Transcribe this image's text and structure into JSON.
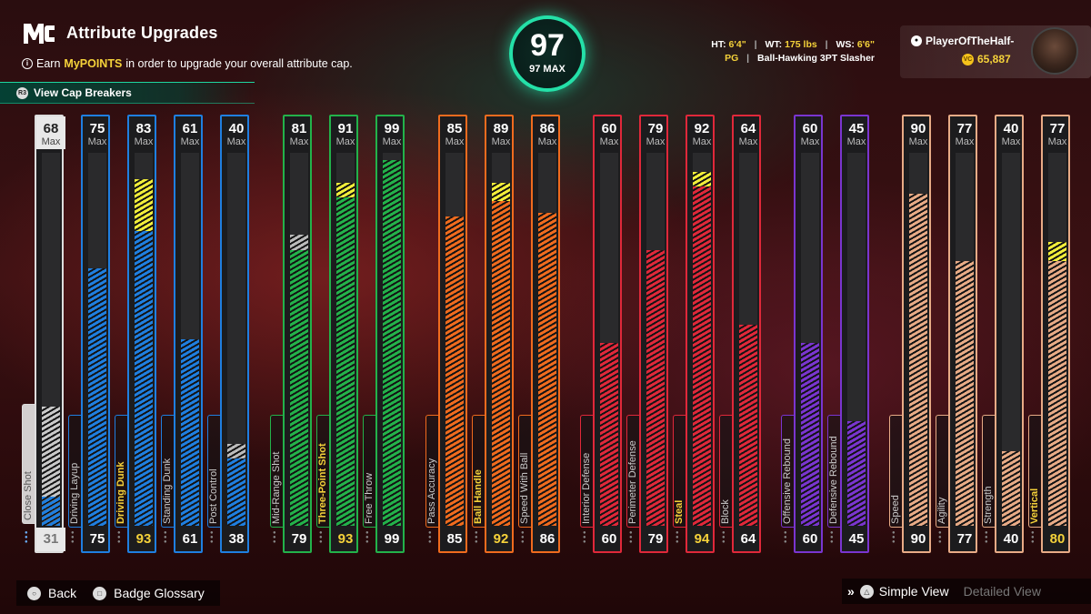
{
  "header": {
    "title": "Attribute Upgrades",
    "subtitle_prefix": "Earn ",
    "subtitle_highlight": "MyPOINTS",
    "subtitle_suffix": " in order to upgrade your overall attribute cap.",
    "cap_breakers_label": "View Cap Breakers",
    "cap_breakers_icon_text": "R3"
  },
  "overall": {
    "value": "97",
    "max_label": "97 MAX"
  },
  "bio": {
    "ht_label": "HT:",
    "ht_value": "6'4\"",
    "wt_label": "WT:",
    "wt_value": "175 lbs",
    "ws_label": "WS:",
    "ws_value": "6'6\"",
    "position": "PG",
    "archetype": "Ball-Hawking 3PT Slasher"
  },
  "player": {
    "name": "PlayerOfTheHalf-",
    "vc": "65,887",
    "vc_icon_text": "VC"
  },
  "max_word": "Max",
  "colors": {
    "gray": "#c9c9c9",
    "blue": "#1f7fe0",
    "green": "#23b24a",
    "orange": "#f06b1e",
    "red": "#e0283a",
    "purple": "#7a35d0",
    "tan": "#e8ab86",
    "boost": "#f2ee3a",
    "accent": "#24e0a8"
  },
  "attributes": [
    {
      "name": "Close Shot",
      "cap": "68",
      "current": "31",
      "fill": 0.32,
      "boost": 0.0,
      "group": "gray",
      "highlight": false,
      "selected": true
    },
    {
      "name": "Driving Layup",
      "cap": "75",
      "current": "75",
      "fill": 0.69,
      "boost": 0.0,
      "group": "blue",
      "highlight": false
    },
    {
      "name": "Driving Dunk",
      "cap": "83",
      "current": "93",
      "fill": 0.79,
      "boost": 0.14,
      "group": "blue",
      "highlight": true
    },
    {
      "name": "Standing Dunk",
      "cap": "61",
      "current": "61",
      "fill": 0.5,
      "boost": 0.0,
      "group": "blue",
      "highlight": false
    },
    {
      "name": "Post Control",
      "cap": "40",
      "current": "38",
      "fill": 0.18,
      "boost": 0.04,
      "group": "blue",
      "highlight": false,
      "grey_boost": true
    },
    {
      "name": "Mid-Range Shot",
      "cap": "81",
      "current": "79",
      "fill": 0.74,
      "boost": 0.04,
      "group": "green",
      "highlight": false,
      "grey_boost": true
    },
    {
      "name": "Three-Point Shot",
      "cap": "91",
      "current": "93",
      "fill": 0.88,
      "boost": 0.04,
      "group": "green",
      "highlight": true
    },
    {
      "name": "Free Throw",
      "cap": "99",
      "current": "99",
      "fill": 0.98,
      "boost": 0.0,
      "group": "green",
      "highlight": false
    },
    {
      "name": "Pass Accuracy",
      "cap": "85",
      "current": "85",
      "fill": 0.83,
      "boost": 0.0,
      "group": "orange",
      "highlight": false
    },
    {
      "name": "Ball Handle",
      "cap": "89",
      "current": "92",
      "fill": 0.87,
      "boost": 0.05,
      "group": "orange",
      "highlight": true
    },
    {
      "name": "Speed With Ball",
      "cap": "86",
      "current": "86",
      "fill": 0.84,
      "boost": 0.0,
      "group": "orange",
      "highlight": false
    },
    {
      "name": "Interior Defense",
      "cap": "60",
      "current": "60",
      "fill": 0.49,
      "boost": 0.0,
      "group": "red",
      "highlight": false
    },
    {
      "name": "Perimeter Defense",
      "cap": "79",
      "current": "79",
      "fill": 0.74,
      "boost": 0.0,
      "group": "red",
      "highlight": false
    },
    {
      "name": "Steal",
      "cap": "92",
      "current": "94",
      "fill": 0.91,
      "boost": 0.04,
      "group": "red",
      "highlight": true
    },
    {
      "name": "Block",
      "cap": "64",
      "current": "64",
      "fill": 0.54,
      "boost": 0.0,
      "group": "red",
      "highlight": false
    },
    {
      "name": "Offensive Rebound",
      "cap": "60",
      "current": "60",
      "fill": 0.49,
      "boost": 0.0,
      "group": "purple",
      "highlight": false
    },
    {
      "name": "Defensive Rebound",
      "cap": "45",
      "current": "45",
      "fill": 0.28,
      "boost": 0.0,
      "group": "purple",
      "highlight": false
    },
    {
      "name": "Speed",
      "cap": "90",
      "current": "90",
      "fill": 0.89,
      "boost": 0.0,
      "group": "tan",
      "highlight": false
    },
    {
      "name": "Agility",
      "cap": "77",
      "current": "77",
      "fill": 0.71,
      "boost": 0.0,
      "group": "tan",
      "highlight": false
    },
    {
      "name": "Strength",
      "cap": "40",
      "current": "40",
      "fill": 0.2,
      "boost": 0.0,
      "group": "tan",
      "highlight": false
    },
    {
      "name": "Vertical",
      "cap": "77",
      "current": "80",
      "fill": 0.71,
      "boost": 0.05,
      "group": "tan",
      "highlight": true
    }
  ],
  "footer": {
    "back_label": "Back",
    "glossary_label": "Badge Glossary",
    "simple_view_label": "Simple View",
    "detailed_view_label": "Detailed View"
  }
}
